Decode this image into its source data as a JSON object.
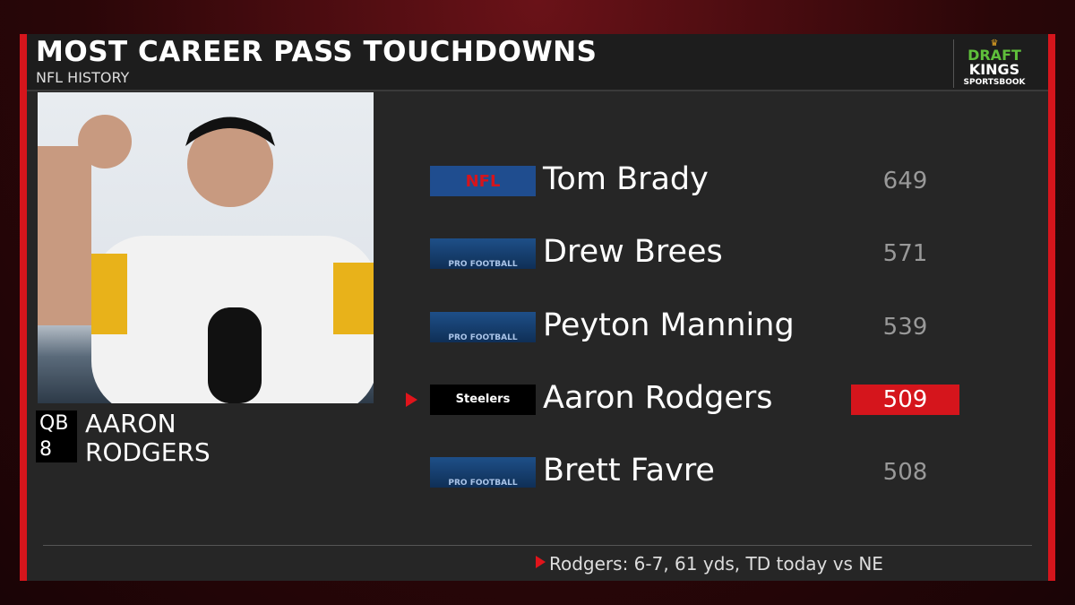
{
  "header": {
    "title": "MOST CAREER PASS TOUCHDOWNS",
    "subtitle": "NFL HISTORY"
  },
  "sponsor": {
    "line1": "DRAFT",
    "line2": "KINGS",
    "line3": "SPORTSBOOK"
  },
  "player": {
    "position": "QB",
    "number": "8",
    "first_name": "AARON",
    "last_name": "RODGERS"
  },
  "rows": [
    {
      "logo": "NFL",
      "name": "Tom Brady",
      "value": "649",
      "highlighted": false
    },
    {
      "logo": "PRO FOOTBALL",
      "name": "Drew Brees",
      "value": "571",
      "highlighted": false
    },
    {
      "logo": "PRO FOOTBALL",
      "name": "Peyton Manning",
      "value": "539",
      "highlighted": false
    },
    {
      "logo": "Steelers",
      "name": "Aaron Rodgers",
      "value": "509",
      "highlighted": true
    },
    {
      "logo": "PRO FOOTBALL",
      "name": "Brett Favre",
      "value": "508",
      "highlighted": false
    }
  ],
  "footer": "Rodgers: 6-7, 61 yds, TD today vs NE"
}
